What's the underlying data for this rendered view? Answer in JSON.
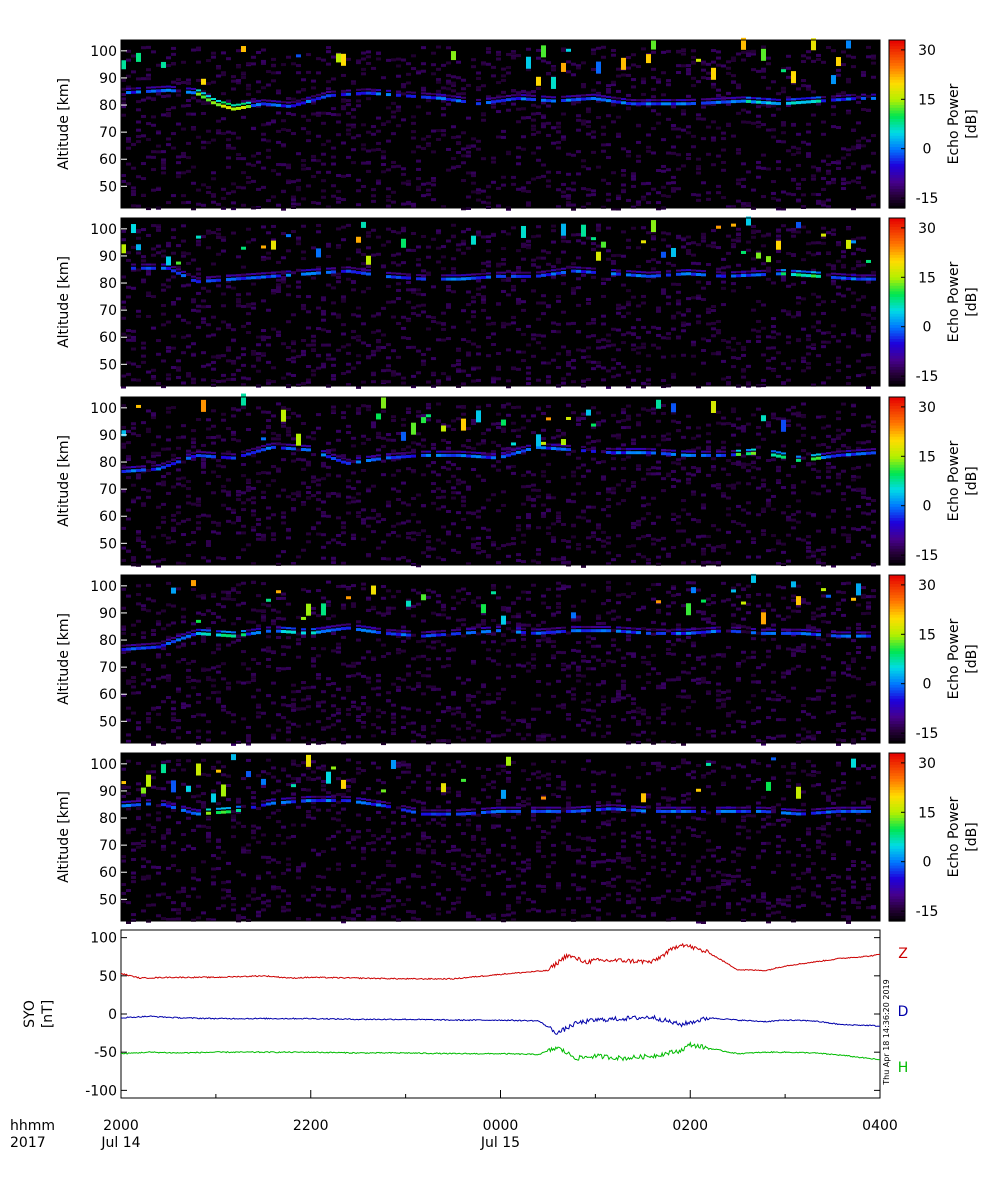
{
  "chart_data": [
    {
      "type": "heatmap",
      "panel": 1,
      "ylabel": "Altitude [km]",
      "y_ticks": [
        50,
        60,
        70,
        80,
        90,
        100
      ],
      "ylim": [
        42,
        104
      ],
      "xlim": [
        0,
        8
      ],
      "colorbar": {
        "label_line1": "Echo Power",
        "label_line2": "[dB]",
        "ticks": [
          30,
          15,
          0,
          -15
        ],
        "range": [
          -18,
          33
        ]
      },
      "echo_layer": [
        [
          0.0,
          84
        ],
        [
          0.5,
          85
        ],
        [
          0.8,
          84
        ],
        [
          1.0,
          80
        ],
        [
          1.2,
          78
        ],
        [
          1.5,
          80
        ],
        [
          1.8,
          79
        ],
        [
          2.2,
          83
        ],
        [
          2.6,
          84
        ],
        [
          3.0,
          83
        ],
        [
          3.4,
          82
        ],
        [
          3.8,
          80
        ],
        [
          4.2,
          82
        ],
        [
          4.6,
          81
        ],
        [
          5.0,
          82
        ],
        [
          5.4,
          80
        ],
        [
          6.0,
          80
        ],
        [
          6.6,
          81
        ],
        [
          7.0,
          80
        ],
        [
          7.4,
          81
        ],
        [
          7.8,
          82
        ],
        [
          8.0,
          82
        ]
      ],
      "bright_segments": [
        [
          0.8,
          1.4,
          80,
          14
        ],
        [
          6.6,
          7.4,
          81,
          4
        ]
      ]
    },
    {
      "type": "heatmap",
      "panel": 2,
      "ylabel": "Altitude [km]",
      "y_ticks": [
        50,
        60,
        70,
        80,
        90,
        100
      ],
      "ylim": [
        42,
        104
      ],
      "xlim": [
        0,
        8
      ],
      "colorbar": {
        "label_line1": "Echo Power",
        "label_line2": "[dB]",
        "ticks": [
          30,
          15,
          0,
          -15
        ],
        "range": [
          -18,
          33
        ]
      },
      "echo_layer": [
        [
          0.0,
          85
        ],
        [
          0.5,
          85
        ],
        [
          0.8,
          80
        ],
        [
          1.2,
          81
        ],
        [
          1.6,
          82
        ],
        [
          2.0,
          83
        ],
        [
          2.4,
          84
        ],
        [
          2.8,
          82
        ],
        [
          3.2,
          81
        ],
        [
          3.6,
          81
        ],
        [
          4.0,
          82
        ],
        [
          4.4,
          82
        ],
        [
          4.8,
          84
        ],
        [
          5.2,
          83
        ],
        [
          5.6,
          82
        ],
        [
          6.0,
          83
        ],
        [
          6.4,
          82
        ],
        [
          7.0,
          83
        ],
        [
          7.4,
          82
        ],
        [
          7.8,
          81
        ],
        [
          8.0,
          81
        ]
      ],
      "bright_segments": [
        [
          7.0,
          7.5,
          82,
          8
        ]
      ]
    },
    {
      "type": "heatmap",
      "panel": 3,
      "ylabel": "Altitude [km]",
      "y_ticks": [
        50,
        60,
        70,
        80,
        90,
        100
      ],
      "ylim": [
        42,
        104
      ],
      "xlim": [
        0,
        8
      ],
      "colorbar": {
        "label_line1": "Echo Power",
        "label_line2": "[dB]",
        "ticks": [
          30,
          15,
          0,
          -15
        ],
        "range": [
          -18,
          33
        ]
      },
      "echo_layer": [
        [
          0.0,
          76
        ],
        [
          0.4,
          77
        ],
        [
          0.8,
          82
        ],
        [
          1.2,
          81
        ],
        [
          1.6,
          85
        ],
        [
          2.0,
          84
        ],
        [
          2.4,
          79
        ],
        [
          2.8,
          81
        ],
        [
          3.2,
          82
        ],
        [
          3.6,
          82
        ],
        [
          4.0,
          81
        ],
        [
          4.4,
          85
        ],
        [
          4.8,
          84
        ],
        [
          5.2,
          83
        ],
        [
          5.6,
          83
        ],
        [
          6.0,
          82
        ],
        [
          6.4,
          82
        ],
        [
          6.8,
          83
        ],
        [
          7.2,
          80
        ],
        [
          7.6,
          82
        ],
        [
          8.0,
          83
        ]
      ],
      "bright_segments": [
        [
          6.5,
          7.4,
          82,
          10
        ]
      ]
    },
    {
      "type": "heatmap",
      "panel": 4,
      "ylabel": "Altitude [km]",
      "y_ticks": [
        50,
        60,
        70,
        80,
        90,
        100
      ],
      "ylim": [
        42,
        104
      ],
      "xlim": [
        0,
        8
      ],
      "colorbar": {
        "label_line1": "Echo Power",
        "label_line2": "[dB]",
        "ticks": [
          30,
          15,
          0,
          -15
        ],
        "range": [
          -18,
          33
        ]
      },
      "echo_layer": [
        [
          0.0,
          76
        ],
        [
          0.4,
          77
        ],
        [
          0.8,
          82
        ],
        [
          1.2,
          81
        ],
        [
          1.6,
          83
        ],
        [
          2.0,
          82
        ],
        [
          2.4,
          84
        ],
        [
          2.8,
          82
        ],
        [
          3.2,
          81
        ],
        [
          3.6,
          82
        ],
        [
          4.0,
          83
        ],
        [
          4.4,
          82
        ],
        [
          4.8,
          83
        ],
        [
          5.2,
          83
        ],
        [
          5.6,
          82
        ],
        [
          6.0,
          82
        ],
        [
          6.4,
          83
        ],
        [
          6.8,
          82
        ],
        [
          7.2,
          82
        ],
        [
          7.6,
          81
        ],
        [
          8.0,
          81
        ]
      ],
      "bright_segments": [
        [
          0.8,
          1.3,
          81,
          5
        ],
        [
          1.7,
          2.1,
          83,
          5
        ]
      ]
    },
    {
      "type": "heatmap",
      "panel": 5,
      "ylabel": "Altitude [km]",
      "y_ticks": [
        50,
        60,
        70,
        80,
        90,
        100
      ],
      "ylim": [
        42,
        104
      ],
      "xlim": [
        0,
        8
      ],
      "colorbar": {
        "label_line1": "Echo Power",
        "label_line2": "[dB]",
        "ticks": [
          30,
          15,
          0,
          -15
        ],
        "range": [
          -18,
          33
        ]
      },
      "echo_layer": [
        [
          0.0,
          84
        ],
        [
          0.4,
          85
        ],
        [
          0.8,
          81
        ],
        [
          1.2,
          82
        ],
        [
          1.6,
          85
        ],
        [
          2.0,
          86
        ],
        [
          2.4,
          86
        ],
        [
          2.8,
          84
        ],
        [
          3.2,
          81
        ],
        [
          3.6,
          81
        ],
        [
          4.0,
          82
        ],
        [
          4.4,
          82
        ],
        [
          4.8,
          82
        ],
        [
          5.2,
          83
        ],
        [
          5.6,
          82
        ],
        [
          6.0,
          82
        ],
        [
          6.4,
          82
        ],
        [
          6.8,
          82
        ],
        [
          7.2,
          81
        ],
        [
          7.6,
          82
        ],
        [
          8.0,
          82
        ]
      ],
      "bright_segments": [
        [
          0.9,
          1.3,
          81,
          10
        ]
      ]
    },
    {
      "type": "line",
      "panel": 6,
      "ylabel_line1": "SYO",
      "ylabel_line2": "[nT]",
      "y_ticks": [
        100,
        50,
        0,
        -50,
        -100
      ],
      "ylim": [
        -110,
        110
      ],
      "xlim": [
        0,
        8
      ],
      "series": [
        {
          "name": "Z",
          "color": "#cc0000",
          "x": [
            0.0,
            0.2,
            0.5,
            1.0,
            1.5,
            1.8,
            2.0,
            2.5,
            3.0,
            3.5,
            4.0,
            4.5,
            4.7,
            4.9,
            5.0,
            5.3,
            5.6,
            5.9,
            6.2,
            6.5,
            6.8,
            7.0,
            7.3,
            7.6,
            7.9,
            8.0
          ],
          "y": [
            53,
            47,
            48,
            48,
            50,
            47,
            48,
            47,
            46,
            46,
            52,
            57,
            77,
            68,
            70,
            70,
            68,
            92,
            80,
            58,
            57,
            63,
            68,
            73,
            76,
            78
          ]
        },
        {
          "name": "D",
          "color": "#0000aa",
          "x": [
            0.0,
            0.3,
            0.6,
            1.0,
            1.5,
            2.0,
            2.5,
            3.0,
            3.5,
            4.0,
            4.4,
            4.6,
            4.8,
            5.0,
            5.3,
            5.6,
            5.9,
            6.2,
            6.5,
            6.8,
            7.0,
            7.3,
            7.6,
            7.9,
            8.0
          ],
          "y": [
            -5,
            -3,
            -5,
            -6,
            -6,
            -6,
            -7,
            -7,
            -8,
            -8,
            -9,
            -25,
            -12,
            -8,
            -6,
            -4,
            -14,
            -5,
            -8,
            -10,
            -8,
            -9,
            -14,
            -15,
            -16
          ]
        },
        {
          "name": "H",
          "color": "#00bb00",
          "x": [
            0.0,
            0.3,
            0.6,
            1.0,
            1.5,
            2.0,
            2.5,
            3.0,
            3.5,
            4.0,
            4.4,
            4.6,
            4.8,
            5.0,
            5.3,
            5.6,
            5.9,
            6.0,
            6.2,
            6.5,
            6.8,
            7.0,
            7.3,
            7.6,
            8.0
          ],
          "y": [
            -52,
            -50,
            -51,
            -50,
            -50,
            -50,
            -51,
            -51,
            -52,
            -52,
            -53,
            -44,
            -58,
            -55,
            -58,
            -55,
            -48,
            -40,
            -45,
            -52,
            -50,
            -50,
            -51,
            -54,
            -60
          ]
        }
      ],
      "stamp": "Thu Apr 18 14:36:20 2019"
    }
  ],
  "x_axis": {
    "row_label_time": "hhmm",
    "row_label_year": "2017",
    "ticks": [
      {
        "pos": 0,
        "time": "2000",
        "date": "Jul 14"
      },
      {
        "pos": 2,
        "time": "2200",
        "date": ""
      },
      {
        "pos": 4,
        "time": "0000",
        "date": "Jul 15"
      },
      {
        "pos": 6,
        "time": "0200",
        "date": ""
      },
      {
        "pos": 8,
        "time": "0400",
        "date": ""
      }
    ]
  }
}
